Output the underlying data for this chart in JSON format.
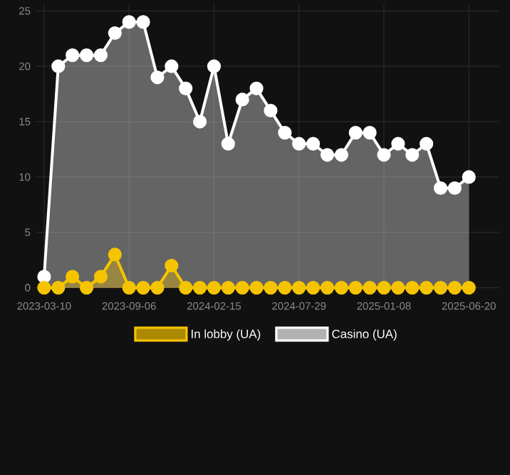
{
  "chart_data": {
    "type": "area",
    "categories": [
      "2023-03-10",
      null,
      null,
      null,
      null,
      null,
      "2023-09-06",
      null,
      null,
      null,
      null,
      null,
      "2024-02-15",
      null,
      null,
      null,
      null,
      null,
      "2024-07-29",
      null,
      null,
      null,
      null,
      null,
      "2025-01-08",
      null,
      null,
      null,
      null,
      null,
      "2025-06-20"
    ],
    "series": [
      {
        "name": "In lobby (UA)",
        "color": "#f5c400",
        "values": [
          0,
          0,
          1,
          0,
          1,
          3,
          0,
          0,
          0,
          2,
          0,
          0,
          0,
          0,
          0,
          0,
          0,
          0,
          0,
          0,
          0,
          0,
          0,
          0,
          0,
          0,
          0,
          0,
          0,
          0,
          0
        ]
      },
      {
        "name": "Casino (UA)",
        "color": "#ffffff",
        "values": [
          1,
          20,
          21,
          21,
          21,
          23,
          24,
          24,
          19,
          20,
          18,
          15,
          20,
          13,
          17,
          18,
          16,
          14,
          13,
          13,
          12,
          12,
          14,
          14,
          12,
          13,
          12,
          13,
          9,
          9,
          10
        ]
      }
    ],
    "ylim": [
      0,
      25
    ],
    "yticks": [
      0,
      5,
      10,
      15,
      20,
      25
    ],
    "grid": true,
    "legend": "bottom",
    "marker": "circle"
  }
}
